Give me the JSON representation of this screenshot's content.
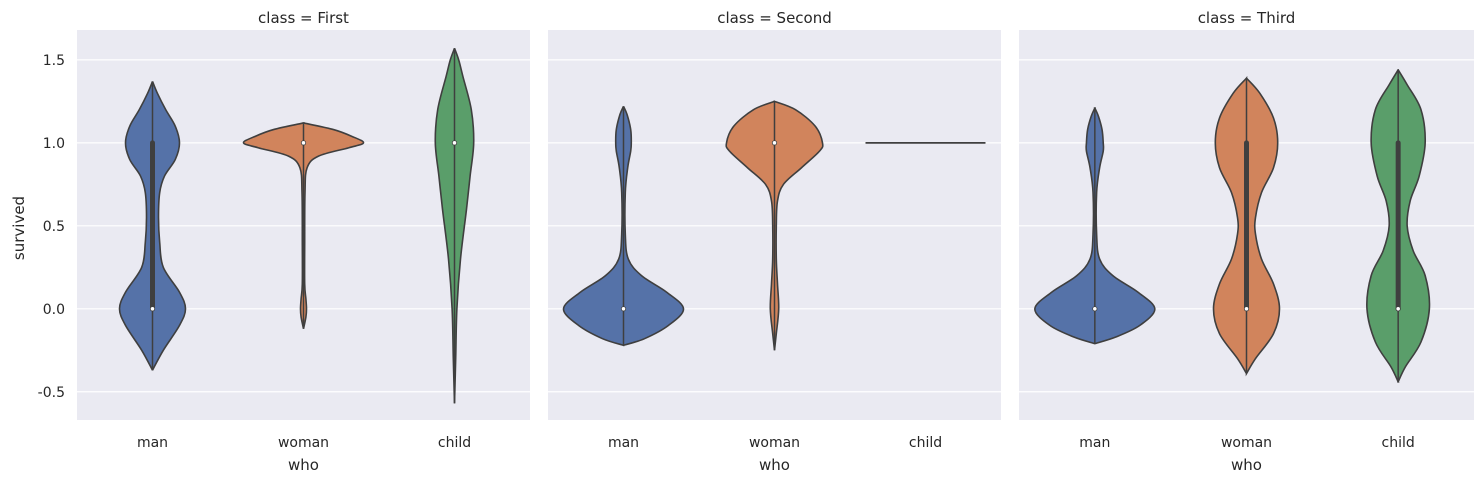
{
  "chart_data": {
    "type": "violin",
    "ylabel": "survived",
    "xlabel": "who",
    "ylim": [
      -0.67,
      1.68
    ],
    "yticks": [
      -0.5,
      0.0,
      0.5,
      1.0,
      1.5
    ],
    "ytick_labels": [
      "-0.5",
      "0.0",
      "0.5",
      "1.0",
      "1.5"
    ],
    "categories": [
      "man",
      "woman",
      "child"
    ],
    "colors": {
      "man": "#5572a8",
      "woman": "#d1845c",
      "child": "#5a9e6a"
    },
    "background": "#eaeaf2",
    "grid": true,
    "panels": [
      {
        "title": "class = First",
        "violins": [
          {
            "category": "man",
            "min": -0.37,
            "max": 1.37,
            "q1": 0.0,
            "median": 0.0,
            "q3": 1.0,
            "profile": [
              [
                -0.37,
                0.0
              ],
              [
                -0.25,
                0.18
              ],
              [
                -0.1,
                0.45
              ],
              [
                0.0,
                0.55
              ],
              [
                0.1,
                0.45
              ],
              [
                0.25,
                0.18
              ],
              [
                0.4,
                0.12
              ],
              [
                0.55,
                0.1
              ],
              [
                0.7,
                0.12
              ],
              [
                0.8,
                0.2
              ],
              [
                0.9,
                0.38
              ],
              [
                1.0,
                0.45
              ],
              [
                1.1,
                0.38
              ],
              [
                1.2,
                0.22
              ],
              [
                1.3,
                0.08
              ],
              [
                1.37,
                0.0
              ]
            ]
          },
          {
            "category": "woman",
            "min": -0.12,
            "max": 1.12,
            "q1": 1.0,
            "median": 1.0,
            "q3": 1.0,
            "profile": [
              [
                -0.12,
                0.0
              ],
              [
                -0.05,
                0.04
              ],
              [
                0.0,
                0.05
              ],
              [
                0.06,
                0.04
              ],
              [
                0.15,
                0.02
              ],
              [
                0.4,
                0.02
              ],
              [
                0.7,
                0.025
              ],
              [
                0.85,
                0.06
              ],
              [
                0.92,
                0.25
              ],
              [
                0.97,
                0.75
              ],
              [
                1.0,
                1.0
              ],
              [
                1.04,
                0.8
              ],
              [
                1.08,
                0.5
              ],
              [
                1.12,
                0.0
              ]
            ]
          },
          {
            "category": "child",
            "min": -0.57,
            "max": 1.57,
            "q1": 1.0,
            "median": 1.0,
            "q3": 1.0,
            "profile": [
              [
                -0.57,
                0.0
              ],
              [
                -0.3,
                0.02
              ],
              [
                0.0,
                0.04
              ],
              [
                0.3,
                0.1
              ],
              [
                0.6,
                0.2
              ],
              [
                0.8,
                0.26
              ],
              [
                1.0,
                0.32
              ],
              [
                1.2,
                0.28
              ],
              [
                1.4,
                0.14
              ],
              [
                1.5,
                0.07
              ],
              [
                1.57,
                0.0
              ]
            ]
          }
        ]
      },
      {
        "title": "class = Second",
        "violins": [
          {
            "category": "man",
            "min": -0.22,
            "max": 1.22,
            "q1": 0.0,
            "median": 0.0,
            "q3": 0.0,
            "profile": [
              [
                -0.22,
                0.0
              ],
              [
                -0.18,
                0.35
              ],
              [
                -0.1,
                0.75
              ],
              [
                0.0,
                1.0
              ],
              [
                0.1,
                0.72
              ],
              [
                0.2,
                0.3
              ],
              [
                0.3,
                0.08
              ],
              [
                0.45,
                0.03
              ],
              [
                0.7,
                0.03
              ],
              [
                0.85,
                0.07
              ],
              [
                0.95,
                0.12
              ],
              [
                1.0,
                0.13
              ],
              [
                1.08,
                0.12
              ],
              [
                1.17,
                0.06
              ],
              [
                1.22,
                0.0
              ]
            ]
          },
          {
            "category": "woman",
            "min": -0.25,
            "max": 1.25,
            "q1": 1.0,
            "median": 1.0,
            "q3": 1.0,
            "profile": [
              [
                -0.25,
                0.0
              ],
              [
                -0.15,
                0.03
              ],
              [
                0.0,
                0.07
              ],
              [
                0.15,
                0.05
              ],
              [
                0.3,
                0.03
              ],
              [
                0.5,
                0.03
              ],
              [
                0.65,
                0.05
              ],
              [
                0.75,
                0.15
              ],
              [
                0.85,
                0.45
              ],
              [
                0.95,
                0.75
              ],
              [
                1.0,
                0.8
              ],
              [
                1.1,
                0.68
              ],
              [
                1.2,
                0.35
              ],
              [
                1.25,
                0.0
              ]
            ]
          },
          {
            "category": "child",
            "min": 1.0,
            "max": 1.0,
            "q1": 1.0,
            "median": 1.0,
            "q3": 1.0,
            "flat": true,
            "profile": []
          }
        ]
      },
      {
        "title": "class = Third",
        "violins": [
          {
            "category": "man",
            "min": -0.21,
            "max": 1.21,
            "q1": 0.0,
            "median": 0.0,
            "q3": 0.0,
            "profile": [
              [
                -0.21,
                0.0
              ],
              [
                -0.17,
                0.35
              ],
              [
                -0.1,
                0.75
              ],
              [
                0.0,
                1.0
              ],
              [
                0.1,
                0.72
              ],
              [
                0.2,
                0.3
              ],
              [
                0.3,
                0.08
              ],
              [
                0.45,
                0.03
              ],
              [
                0.7,
                0.03
              ],
              [
                0.85,
                0.08
              ],
              [
                0.95,
                0.14
              ],
              [
                1.0,
                0.14
              ],
              [
                1.08,
                0.12
              ],
              [
                1.16,
                0.06
              ],
              [
                1.21,
                0.0
              ]
            ]
          },
          {
            "category": "woman",
            "min": -0.39,
            "max": 1.39,
            "q1": 0.0,
            "median": 0.0,
            "q3": 1.0,
            "profile": [
              [
                -0.39,
                0.0
              ],
              [
                -0.3,
                0.15
              ],
              [
                -0.15,
                0.45
              ],
              [
                0.0,
                0.55
              ],
              [
                0.15,
                0.45
              ],
              [
                0.3,
                0.25
              ],
              [
                0.45,
                0.15
              ],
              [
                0.55,
                0.15
              ],
              [
                0.7,
                0.25
              ],
              [
                0.85,
                0.45
              ],
              [
                1.0,
                0.52
              ],
              [
                1.15,
                0.45
              ],
              [
                1.3,
                0.22
              ],
              [
                1.39,
                0.0
              ]
            ]
          },
          {
            "category": "child",
            "min": -0.44,
            "max": 1.44,
            "q1": 0.0,
            "median": 0.0,
            "q3": 1.0,
            "profile": [
              [
                -0.44,
                0.0
              ],
              [
                -0.35,
                0.12
              ],
              [
                -0.2,
                0.38
              ],
              [
                0.0,
                0.52
              ],
              [
                0.2,
                0.45
              ],
              [
                0.35,
                0.25
              ],
              [
                0.5,
                0.15
              ],
              [
                0.65,
                0.2
              ],
              [
                0.8,
                0.35
              ],
              [
                1.0,
                0.45
              ],
              [
                1.2,
                0.38
              ],
              [
                1.35,
                0.15
              ],
              [
                1.44,
                0.0
              ]
            ]
          }
        ]
      }
    ]
  }
}
